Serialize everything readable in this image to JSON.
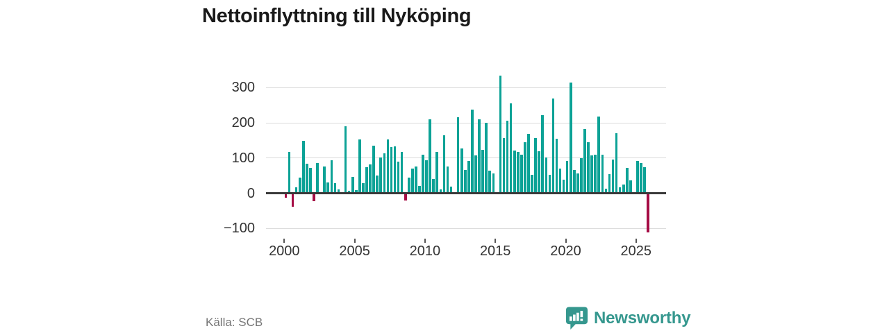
{
  "title": "Nettoinflyttning till Nyköping",
  "source": "Källa: SCB",
  "logo": {
    "text": "Newsworthy"
  },
  "colors": {
    "positive": "#0ca296",
    "negative": "#a60d45",
    "grid": "#dcdcdc",
    "axis": "#3a3a3a",
    "tick_text": "#333333",
    "source_text": "#757575",
    "brand_teal": "#35978e"
  },
  "chart_data": {
    "type": "bar",
    "title": "Nettoinflyttning till Nyköping",
    "period": "quarterly",
    "start": "2000-Q1",
    "end": "2025-Q4",
    "xlabel": "",
    "ylabel": "",
    "ylim": [
      -130,
      345
    ],
    "grid": "horizontal",
    "legend": "none",
    "y_ticks": [
      300,
      200,
      100,
      0,
      -100
    ],
    "y_tick_labels": [
      "300",
      "200",
      "100",
      "0",
      "−100"
    ],
    "x_tick_years": [
      2000,
      2005,
      2010,
      2015,
      2020,
      2025
    ],
    "x_tick_labels": [
      "2000",
      "2005",
      "2010",
      "2015",
      "2020",
      "2025"
    ],
    "values": [
      -12,
      118,
      -38,
      16,
      45,
      148,
      84,
      72,
      -23,
      85,
      2,
      76,
      30,
      94,
      28,
      11,
      2,
      190,
      6,
      46,
      8,
      152,
      28,
      73,
      82,
      135,
      51,
      101,
      114,
      153,
      132,
      133,
      90,
      117,
      -20,
      44,
      70,
      76,
      21,
      109,
      93,
      210,
      40,
      117,
      11,
      165,
      75,
      18,
      0,
      215,
      128,
      67,
      91,
      237,
      108,
      211,
      123,
      200,
      65,
      57,
      2,
      335,
      156,
      207,
      255,
      122,
      117,
      109,
      145,
      169,
      52,
      156,
      120,
      221,
      102,
      52,
      269,
      155,
      70,
      38,
      92,
      315,
      67,
      56,
      99,
      183,
      145,
      108,
      110,
      218,
      109,
      12,
      55,
      95,
      170,
      16,
      25,
      72,
      37,
      2,
      92,
      85,
      74,
      -112
    ]
  }
}
